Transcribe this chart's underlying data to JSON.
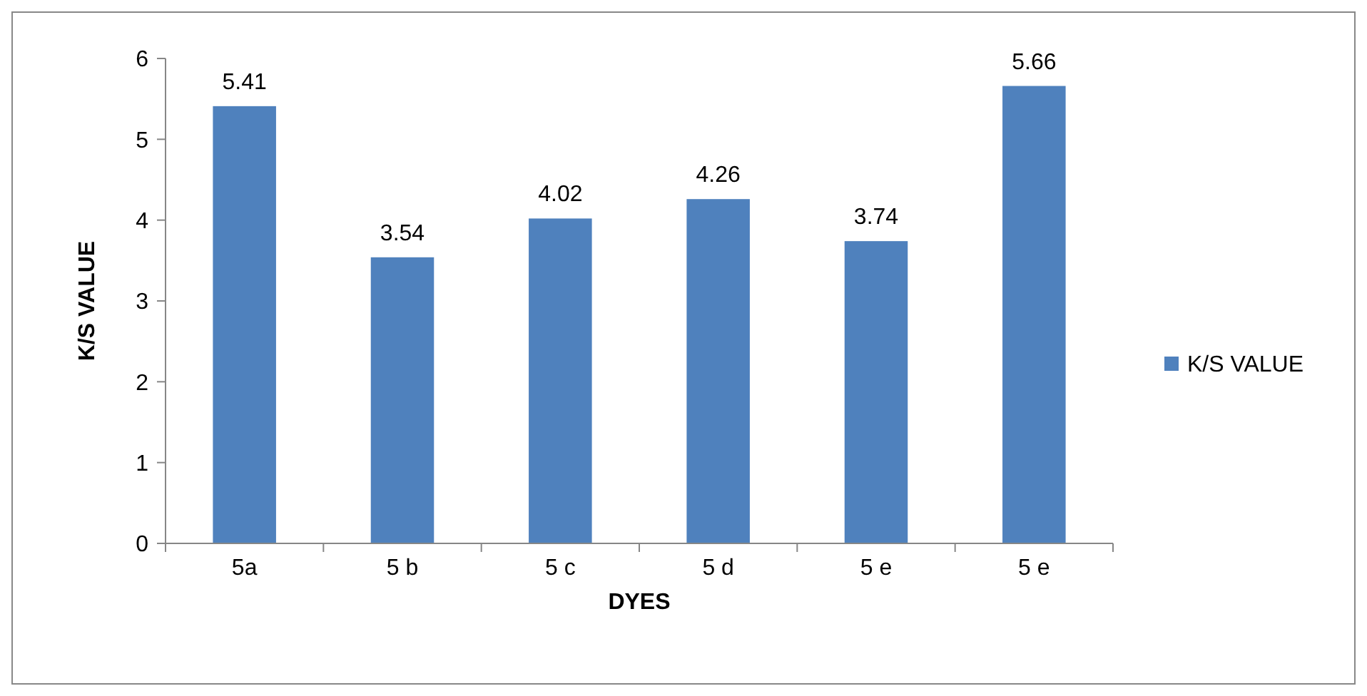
{
  "chart_data": {
    "type": "bar",
    "xlabel": "DYES",
    "ylabel": "K/S VALUE",
    "categories": [
      "5a",
      "5 b",
      "5 c",
      "5 d",
      "5 e",
      "5 e"
    ],
    "series": [
      {
        "name": "K/S VALUE",
        "color": "#4f81bd",
        "values": [
          5.41,
          3.54,
          4.02,
          4.26,
          3.74,
          5.66
        ]
      }
    ],
    "ylim": [
      0,
      6
    ],
    "yticks": [
      0,
      1,
      2,
      3,
      4,
      5,
      6
    ],
    "grid": false,
    "legend": "right",
    "data_labels": true
  }
}
